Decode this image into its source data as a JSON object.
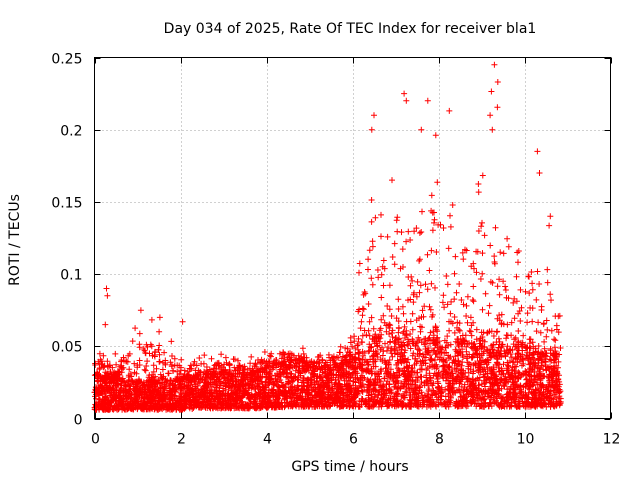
{
  "chart_data": {
    "type": "scatter",
    "title": "Day 034 of 2025, Rate Of TEC Index for receiver bla1",
    "xlabel": "GPS time / hours",
    "ylabel": "ROTI / TECUs",
    "xlim": [
      0,
      12
    ],
    "ylim": [
      0,
      0.25
    ],
    "x_ticks": [
      0,
      2,
      4,
      6,
      8,
      10,
      12
    ],
    "x_tick_labels": [
      "0",
      "2",
      "4",
      "6",
      "8",
      "10",
      "12"
    ],
    "y_ticks": [
      0,
      0.05,
      0.1,
      0.15,
      0.2,
      0.25
    ],
    "y_tick_labels": [
      "0",
      "0.05",
      "0.1",
      "0.15",
      "0.2",
      "0.25"
    ],
    "grid": true,
    "marker": "+",
    "color": "#ff0000",
    "series": [
      {
        "name": "ROTI",
        "note": "dense scatter of several thousand points; envelope estimated per hour",
        "envelope": [
          {
            "t": 0.0,
            "base_lo": 0.006,
            "base_hi": 0.03,
            "peak": 0.05
          },
          {
            "t": 0.5,
            "base_lo": 0.006,
            "base_hi": 0.028,
            "peak": 0.045
          },
          {
            "t": 1.0,
            "base_lo": 0.006,
            "base_hi": 0.025,
            "peak": 0.07
          },
          {
            "t": 1.5,
            "base_lo": 0.006,
            "base_hi": 0.025,
            "peak": 0.07
          },
          {
            "t": 2.0,
            "base_lo": 0.006,
            "base_hi": 0.027,
            "peak": 0.045
          },
          {
            "t": 2.5,
            "base_lo": 0.007,
            "base_hi": 0.03,
            "peak": 0.045
          },
          {
            "t": 3.0,
            "base_lo": 0.007,
            "base_hi": 0.032,
            "peak": 0.045
          },
          {
            "t": 3.5,
            "base_lo": 0.007,
            "base_hi": 0.03,
            "peak": 0.04
          },
          {
            "t": 4.0,
            "base_lo": 0.007,
            "base_hi": 0.035,
            "peak": 0.05
          },
          {
            "t": 4.5,
            "base_lo": 0.008,
            "base_hi": 0.04,
            "peak": 0.05
          },
          {
            "t": 4.85,
            "base_lo": 0.008,
            "base_hi": 0.04,
            "peak": 0.05
          },
          {
            "t": 5.0,
            "base_lo": 0.008,
            "base_hi": 0.035,
            "peak": 0.045
          },
          {
            "t": 5.5,
            "base_lo": 0.008,
            "base_hi": 0.035,
            "peak": 0.045
          },
          {
            "t": 6.0,
            "base_lo": 0.008,
            "base_hi": 0.04,
            "peak": 0.06
          },
          {
            "t": 6.5,
            "base_lo": 0.008,
            "base_hi": 0.055,
            "peak": 0.21
          },
          {
            "t": 7.0,
            "base_lo": 0.008,
            "base_hi": 0.06,
            "peak": 0.2
          },
          {
            "t": 7.25,
            "base_lo": 0.008,
            "base_hi": 0.06,
            "peak": 0.225
          },
          {
            "t": 7.5,
            "base_lo": 0.008,
            "base_hi": 0.055,
            "peak": 0.2
          },
          {
            "t": 8.0,
            "base_lo": 0.008,
            "base_hi": 0.055,
            "peak": 0.21
          },
          {
            "t": 8.5,
            "base_lo": 0.008,
            "base_hi": 0.055,
            "peak": 0.15
          },
          {
            "t": 9.0,
            "base_lo": 0.008,
            "base_hi": 0.05,
            "peak": 0.2
          },
          {
            "t": 9.35,
            "base_lo": 0.008,
            "base_hi": 0.05,
            "peak": 0.245
          },
          {
            "t": 9.75,
            "base_lo": 0.008,
            "base_hi": 0.05,
            "peak": 0.14
          },
          {
            "t": 10.0,
            "base_lo": 0.008,
            "base_hi": 0.05,
            "peak": 0.12
          },
          {
            "t": 10.35,
            "base_lo": 0.008,
            "base_hi": 0.045,
            "peak": 0.185
          },
          {
            "t": 10.85,
            "base_lo": 0.008,
            "base_hi": 0.045,
            "peak": 0.09
          }
        ],
        "highlights": [
          {
            "x": 0.28,
            "y": 0.09
          },
          {
            "x": 0.3,
            "y": 0.085
          },
          {
            "x": 0.25,
            "y": 0.065
          },
          {
            "x": 1.08,
            "y": 0.075
          },
          {
            "x": 1.52,
            "y": 0.07
          },
          {
            "x": 2.05,
            "y": 0.067
          },
          {
            "x": 6.45,
            "y": 0.2
          },
          {
            "x": 6.5,
            "y": 0.21
          },
          {
            "x": 7.2,
            "y": 0.225
          },
          {
            "x": 7.25,
            "y": 0.22
          },
          {
            "x": 7.75,
            "y": 0.22
          },
          {
            "x": 7.6,
            "y": 0.2
          },
          {
            "x": 8.25,
            "y": 0.213
          },
          {
            "x": 9.3,
            "y": 0.245
          },
          {
            "x": 9.38,
            "y": 0.233
          },
          {
            "x": 9.2,
            "y": 0.21
          },
          {
            "x": 9.25,
            "y": 0.2
          },
          {
            "x": 10.3,
            "y": 0.185
          },
          {
            "x": 10.35,
            "y": 0.17
          },
          {
            "x": 10.6,
            "y": 0.14
          }
        ],
        "xmax": 10.85
      }
    ]
  }
}
